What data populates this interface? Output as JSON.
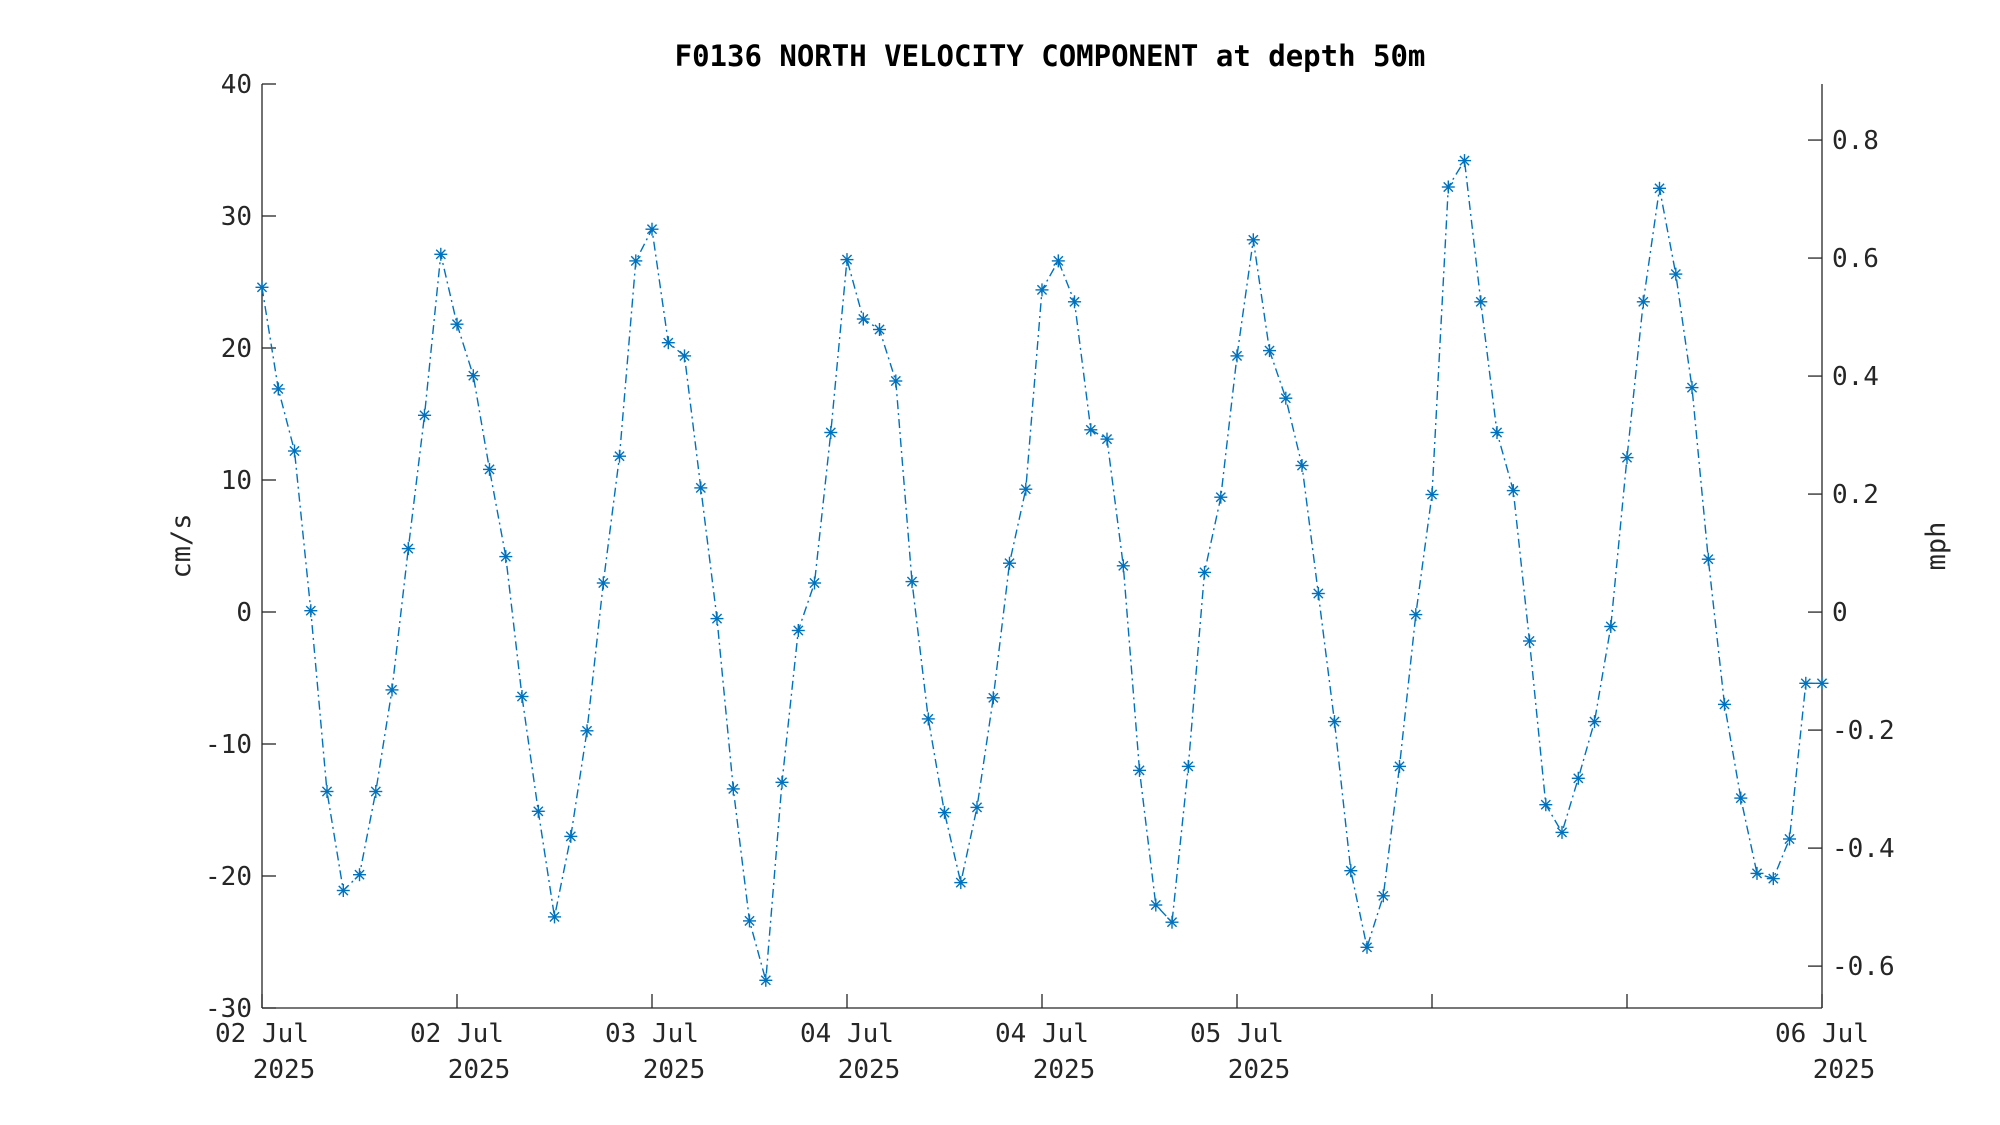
{
  "colors": {
    "series": "#0072BD",
    "axis": "#262626",
    "background": "#ffffff"
  },
  "chart_data": {
    "type": "line",
    "title": "F0136 NORTH VELOCITY COMPONENT at depth 50m",
    "ylabel": "cm/s",
    "y2label": "mph",
    "ylim": [
      -30,
      40
    ],
    "y2lim": [
      -0.671,
      0.895
    ],
    "yticks": [
      -30,
      -20,
      -10,
      0,
      10,
      20,
      30,
      40
    ],
    "yticklabels": [
      "-30",
      "-20",
      "-10",
      "0",
      "10",
      "20",
      "30",
      "40"
    ],
    "y2ticks": [
      -0.6,
      -0.4,
      -0.2,
      0,
      0.2,
      0.4,
      0.6,
      0.8
    ],
    "y2ticklabels": [
      "-0.6",
      "-0.4",
      "-0.2",
      "0",
      "0.2",
      "0.4",
      "0.6",
      "0.8"
    ],
    "xlim": [
      "2025-07-02 00:00",
      "2025-07-06 00:00"
    ],
    "xticks": [
      "2025-07-02 00:00",
      "2025-07-02 12:00",
      "2025-07-03 00:00",
      "2025-07-03 12:00",
      "2025-07-04 00:00",
      "2025-07-04 12:00",
      "2025-07-05 00:00",
      "2025-07-05 12:00",
      "2025-07-06 00:00"
    ],
    "xticklabels": [
      [
        "02 Jul",
        "2025"
      ],
      [
        "02 Jul",
        "2025"
      ],
      [
        "03 Jul",
        "2025"
      ],
      [
        "04 Jul",
        "2025"
      ],
      [
        "04 Jul",
        "2025"
      ],
      [
        "05 Jul",
        "2025"
      ],
      [
        "06 Jul",
        "2025"
      ]
    ],
    "xticklabel_positions": [
      "2025-07-02 00:00",
      "2025-07-02 12:00",
      "2025-07-03 00:00",
      "2025-07-03 12:00",
      "2025-07-04 00:00",
      "2025-07-04 12:00",
      "2025-07-06 00:00"
    ],
    "grid": false,
    "line_style": "dash-dot",
    "marker": "asterisk",
    "series": [
      {
        "x": [
          "2025-07-02 00:00",
          "2025-07-02 01:00",
          "2025-07-02 02:00",
          "2025-07-02 03:00",
          "2025-07-02 04:00",
          "2025-07-02 05:00",
          "2025-07-02 06:00",
          "2025-07-02 07:00",
          "2025-07-02 08:00",
          "2025-07-02 09:00",
          "2025-07-02 10:00",
          "2025-07-02 11:00",
          "2025-07-02 12:00",
          "2025-07-02 13:00",
          "2025-07-02 14:00",
          "2025-07-02 15:00",
          "2025-07-02 16:00",
          "2025-07-02 17:00",
          "2025-07-02 18:00",
          "2025-07-02 19:00",
          "2025-07-02 20:00",
          "2025-07-02 21:00",
          "2025-07-02 22:00",
          "2025-07-02 23:00",
          "2025-07-03 00:00",
          "2025-07-03 01:00",
          "2025-07-03 02:00",
          "2025-07-03 03:00",
          "2025-07-03 04:00",
          "2025-07-03 05:00",
          "2025-07-03 06:00",
          "2025-07-03 07:00",
          "2025-07-03 08:00",
          "2025-07-03 09:00",
          "2025-07-03 10:00",
          "2025-07-03 11:00",
          "2025-07-03 12:00",
          "2025-07-03 13:00",
          "2025-07-03 14:00",
          "2025-07-03 15:00",
          "2025-07-03 16:00",
          "2025-07-03 17:00",
          "2025-07-03 18:00",
          "2025-07-03 19:00",
          "2025-07-03 20:00",
          "2025-07-03 21:00",
          "2025-07-03 22:00",
          "2025-07-03 23:00",
          "2025-07-04 00:00",
          "2025-07-04 01:00",
          "2025-07-04 02:00",
          "2025-07-04 03:00",
          "2025-07-04 04:00",
          "2025-07-04 05:00",
          "2025-07-04 06:00",
          "2025-07-04 07:00",
          "2025-07-04 08:00",
          "2025-07-04 09:00",
          "2025-07-04 10:00",
          "2025-07-04 11:00",
          "2025-07-04 12:00",
          "2025-07-04 13:00",
          "2025-07-04 14:00",
          "2025-07-04 15:00",
          "2025-07-04 16:00",
          "2025-07-04 17:00",
          "2025-07-04 18:00",
          "2025-07-04 19:00",
          "2025-07-04 20:00",
          "2025-07-04 21:00",
          "2025-07-04 22:00",
          "2025-07-04 23:00",
          "2025-07-05 00:00",
          "2025-07-05 01:00",
          "2025-07-05 02:00",
          "2025-07-05 03:00",
          "2025-07-05 04:00",
          "2025-07-05 05:00",
          "2025-07-05 06:00",
          "2025-07-05 07:00",
          "2025-07-05 08:00",
          "2025-07-05 09:00",
          "2025-07-05 10:00",
          "2025-07-05 11:00",
          "2025-07-05 12:00",
          "2025-07-05 13:00",
          "2025-07-05 14:00",
          "2025-07-05 15:00",
          "2025-07-05 16:00",
          "2025-07-05 17:00",
          "2025-07-05 18:00",
          "2025-07-05 19:00",
          "2025-07-05 20:00",
          "2025-07-05 21:00",
          "2025-07-05 22:00",
          "2025-07-05 23:00",
          "2025-07-06 00:00"
        ],
        "values": [
          24.6,
          16.9,
          12.2,
          0.1,
          -13.6,
          -21.1,
          -19.9,
          -13.6,
          -5.9,
          4.8,
          14.9,
          27.1,
          21.8,
          17.9,
          10.8,
          4.2,
          -6.4,
          -15.1,
          -23.1,
          -17.0,
          -9.0,
          2.2,
          11.8,
          26.6,
          29.0,
          20.4,
          19.4,
          9.4,
          -0.5,
          -13.4,
          -23.4,
          -27.9,
          -12.9,
          -1.4,
          2.2,
          13.6,
          26.7,
          22.2,
          21.4,
          17.5,
          2.3,
          -8.1,
          -15.2,
          -20.5,
          -14.8,
          -6.5,
          3.7,
          9.3,
          24.4,
          26.6,
          23.5,
          13.8,
          13.1,
          3.5,
          -12.0,
          -22.2,
          -23.5,
          -11.7,
          3.0,
          8.7,
          19.4,
          28.2,
          19.8,
          16.2,
          11.1,
          1.4,
          -8.3,
          -19.6,
          -25.4,
          -21.5,
          -11.7,
          -0.2,
          8.9,
          32.2,
          34.2,
          23.5,
          13.6,
          9.2,
          -2.2,
          -14.6,
          -16.7,
          -12.6,
          -8.3,
          -1.1,
          11.7,
          23.5,
          32.1,
          25.6,
          17.0,
          4.0,
          -7.0,
          -14.1,
          -19.8,
          -20.2,
          -17.2,
          -5.4,
          -5.4
        ]
      }
    ]
  }
}
